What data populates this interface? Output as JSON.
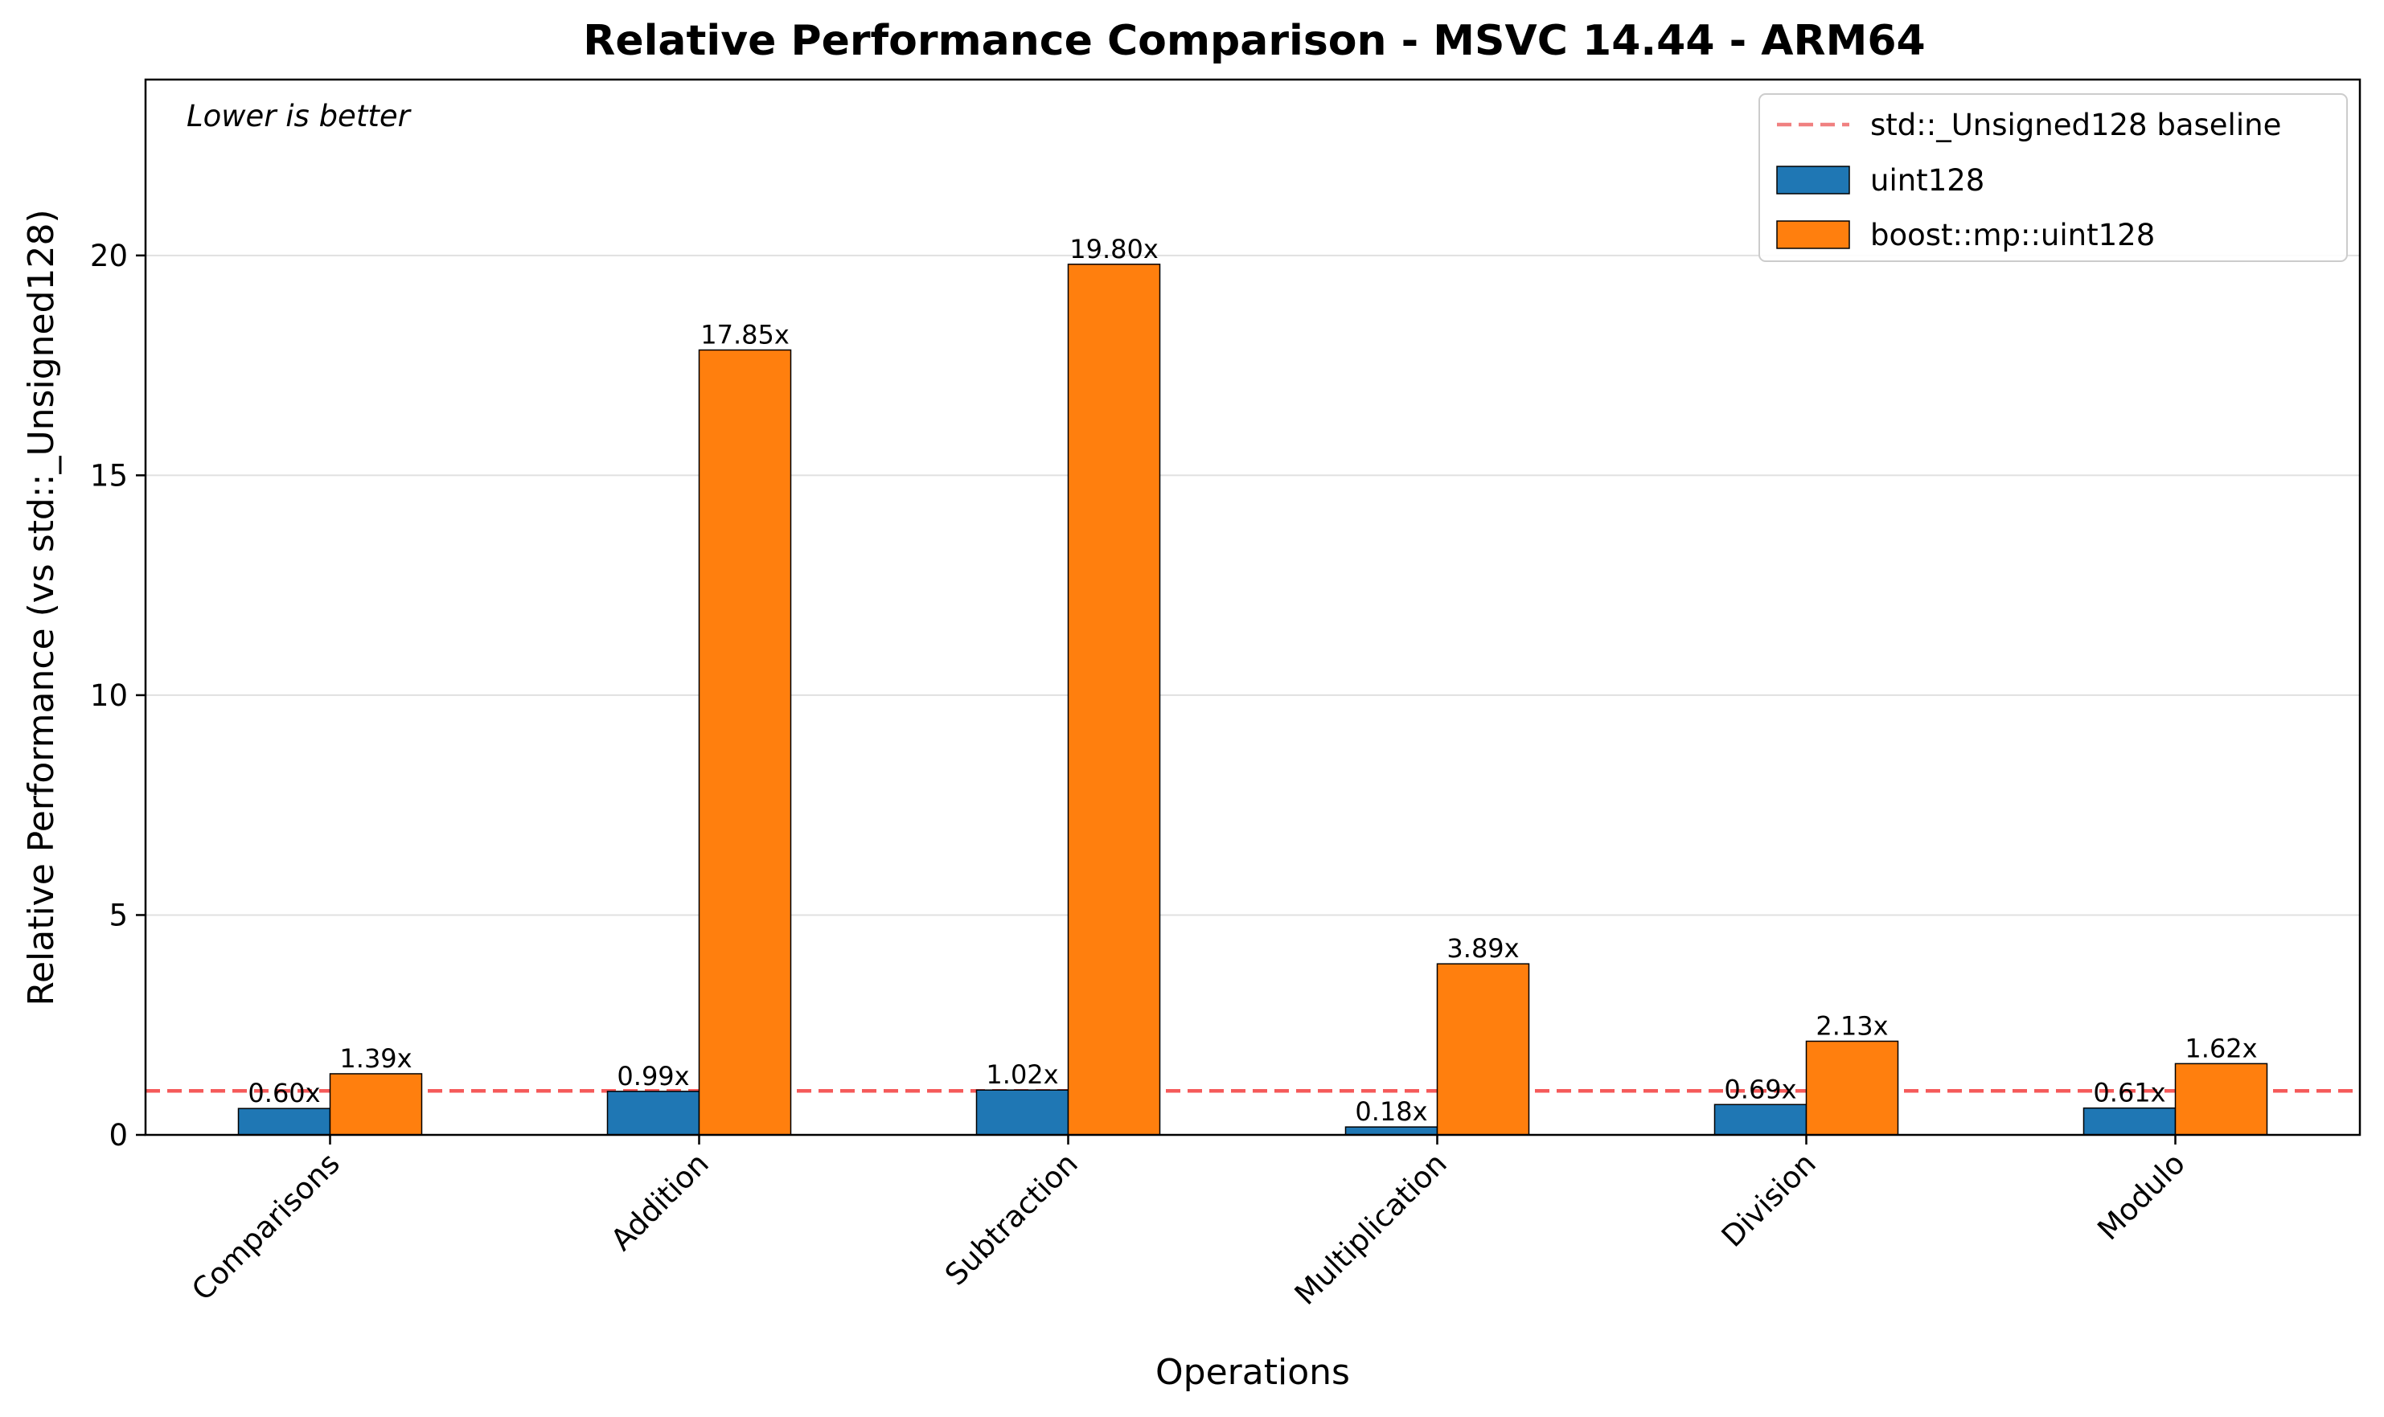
{
  "chart_data": {
    "type": "bar",
    "title": "Relative Performance Comparison - MSVC 14.44 - ARM64",
    "annotation": "Lower is better",
    "xlabel": "Operations",
    "ylabel": "Relative Performance (vs std::_Unsigned128)",
    "ylim": [
      0,
      24
    ],
    "yticks": [
      0,
      5,
      10,
      15,
      20
    ],
    "ytick_labels": [
      "0",
      "5",
      "10",
      "15",
      "20"
    ],
    "grid": "y",
    "legend_position": "top-right",
    "categories": [
      "Comparisons",
      "Addition",
      "Subtraction",
      "Multiplication",
      "Division",
      "Modulo"
    ],
    "baseline": {
      "name": "std::_Unsigned128 baseline",
      "value": 1.0,
      "color": "#f08080"
    },
    "series": [
      {
        "name": "uint128",
        "color": "#1f77b4",
        "values": [
          0.6,
          0.99,
          1.02,
          0.18,
          0.69,
          0.61
        ],
        "labels": [
          "0.60x",
          "0.99x",
          "1.02x",
          "0.18x",
          "0.69x",
          "0.61x"
        ]
      },
      {
        "name": "boost::mp::uint128",
        "color": "#ff7f0e",
        "values": [
          1.39,
          17.85,
          19.8,
          3.89,
          2.13,
          1.62
        ],
        "labels": [
          "1.39x",
          "17.85x",
          "19.80x",
          "3.89x",
          "2.13x",
          "1.62x"
        ]
      }
    ]
  }
}
